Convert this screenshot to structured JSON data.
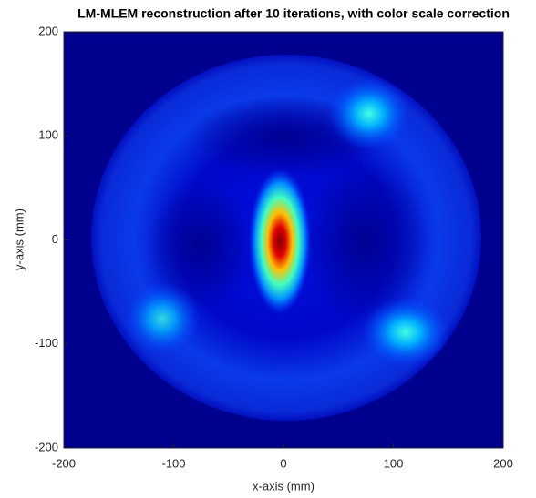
{
  "chart_data": {
    "type": "image",
    "title": "LM-MLEM reconstruction after 10 iterations, with color scale correction",
    "x_label": "x-axis (mm)",
    "y_label": "y-axis (mm)",
    "xlim": [
      -200,
      200
    ],
    "ylim": [
      -200,
      200
    ],
    "xticks": [
      -200,
      -100,
      0,
      100,
      200
    ],
    "yticks": [
      -200,
      -100,
      0,
      100,
      200
    ]
  }
}
